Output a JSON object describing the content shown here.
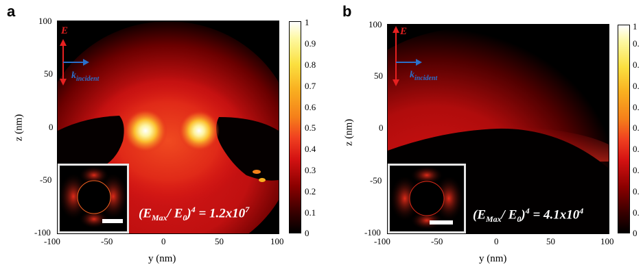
{
  "chart_data": [
    {
      "type": "heatmap",
      "panel_label": "a",
      "xlabel": "y (nm)",
      "ylabel": "z (nm)",
      "xlim": [
        -100,
        100
      ],
      "ylim": [
        -100,
        100
      ],
      "x_ticks": [
        "-100",
        "-50",
        "0",
        "50",
        "100"
      ],
      "y_ticks": [
        "100",
        "50",
        "0",
        "-50",
        "-100"
      ],
      "colorbar_range": [
        0,
        1
      ],
      "colorbar_ticks": [
        "1",
        "0.9",
        "0.8",
        "0.7",
        "0.6",
        "0.5",
        "0.4",
        "0.3",
        "0.2",
        "0.1",
        "0"
      ],
      "annotation": {
        "prefix": "(E",
        "sub": "Max",
        "mid": "/ E",
        "sub2": "0",
        "mid2": ")",
        "sup": "4",
        "eq": " = 1.2x10",
        "sup2": "7"
      },
      "field_label": "E",
      "k_label": "k",
      "k_sub": "incident",
      "hotspots": [
        {
          "y": -20,
          "z": 0,
          "intensity": 1.0
        },
        {
          "y": 32,
          "z": 0,
          "intensity": 0.95
        }
      ]
    },
    {
      "type": "heatmap",
      "panel_label": "b",
      "xlabel": "y (nm)",
      "ylabel": "z (nm)",
      "xlim": [
        -100,
        100
      ],
      "ylim": [
        -100,
        100
      ],
      "x_ticks": [
        "-100",
        "-50",
        "0",
        "50",
        "100"
      ],
      "y_ticks": [
        "100",
        "50",
        "0",
        "-50",
        "-100"
      ],
      "colorbar_range": [
        0,
        1
      ],
      "colorbar_ticks": [
        "0.",
        "0.",
        "0.",
        "0.",
        "0.",
        "0.",
        "0.",
        "0.",
        "0.",
        "0.",
        "0"
      ],
      "colorbar_top_tick": "1",
      "annotation": {
        "prefix": "(E",
        "sub": "Max",
        "mid": "/ E",
        "sub2": "0",
        "mid2": ")",
        "sup": "4",
        "eq": " = 4.1x10",
        "sup2": "4"
      },
      "field_label": "E",
      "k_label": "k",
      "k_sub": "incident"
    }
  ],
  "colors": {
    "colormap": [
      "#000000",
      "#3a0000",
      "#8b0000",
      "#d41212",
      "#f04020",
      "#f5801a",
      "#f9b020",
      "#fbe040",
      "#fdf8a0",
      "#ffffff"
    ],
    "field_arrow": "#e62020",
    "k_arrow": "#2a6fc9"
  }
}
